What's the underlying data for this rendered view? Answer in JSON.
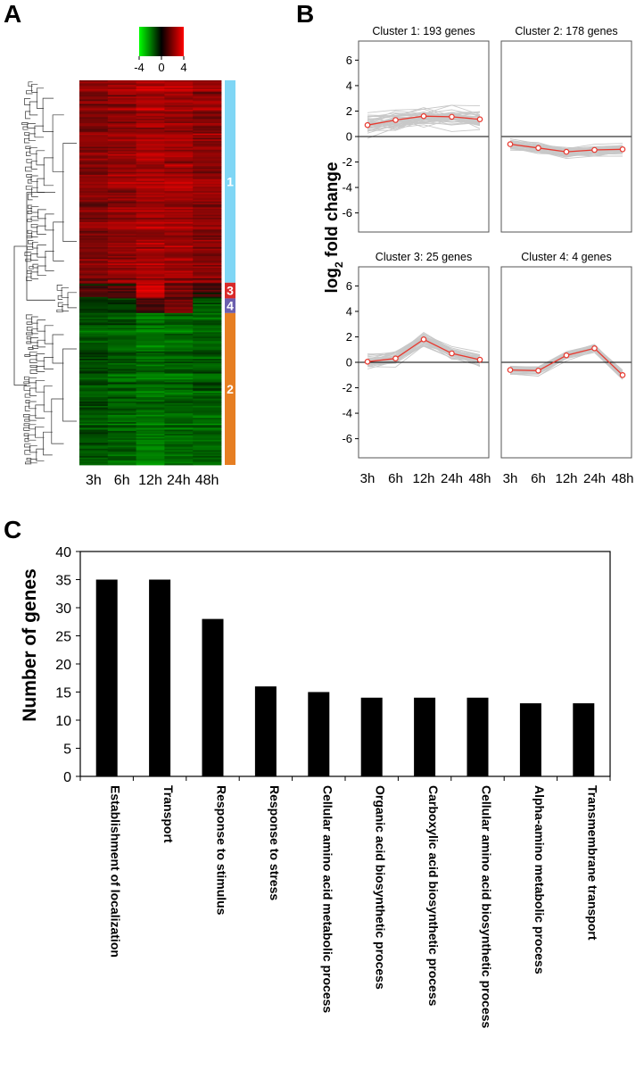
{
  "chart_data": [
    {
      "panel": "A",
      "type": "heatmap",
      "columns": [
        "3h",
        "6h",
        "12h",
        "24h",
        "48h"
      ],
      "color_scale": {
        "ticks": [
          "-4",
          "0",
          "4"
        ],
        "low": "#00ff00",
        "mid": "#000000",
        "high": "#ff0000"
      },
      "clusters": [
        {
          "label": "1",
          "color": "#7fd6f5",
          "fraction": 0.5262,
          "pattern": [
            1.2,
            1.5,
            1.8,
            1.7,
            1.4
          ]
        },
        {
          "label": "3",
          "color": "#d92a2a",
          "fraction": 0.0409,
          "pattern": [
            0.3,
            0.5,
            2.2,
            0.9,
            0.4
          ]
        },
        {
          "label": "4",
          "color": "#6b5fae",
          "fraction": 0.0381,
          "pattern": [
            -0.4,
            -0.5,
            0.4,
            1.0,
            -0.8
          ]
        },
        {
          "label": "2",
          "color": "#e67e22",
          "fraction": 0.3948,
          "pattern": [
            -0.8,
            -1.0,
            -1.3,
            -1.1,
            -1.0
          ]
        }
      ]
    },
    {
      "panel": "B",
      "type": "line",
      "ylabel_main": "log",
      "ylabel_sub": "2",
      "ylabel_rest": " fold change",
      "ylim": [
        -7.5,
        7.5
      ],
      "yticks": [
        6,
        4,
        2,
        0,
        -2,
        -4,
        -6
      ],
      "x": [
        "3h",
        "6h",
        "12h",
        "24h",
        "48h"
      ],
      "panels": [
        {
          "title": "Cluster 1: 193 genes",
          "mean": [
            0.9,
            1.3,
            1.6,
            1.55,
            1.35
          ],
          "spread": 1.4
        },
        {
          "title": "Cluster 2: 178 genes",
          "mean": [
            -0.6,
            -0.9,
            -1.2,
            -1.05,
            -1.0
          ],
          "spread": 0.6
        },
        {
          "title": "Cluster 3: 25 genes",
          "mean": [
            0.05,
            0.3,
            1.8,
            0.7,
            0.2
          ],
          "spread": 0.8
        },
        {
          "title": "Cluster 4: 4 genes",
          "mean": [
            -0.6,
            -0.65,
            0.55,
            1.1,
            -1.0
          ],
          "spread": 0.5
        }
      ]
    },
    {
      "panel": "C",
      "type": "bar",
      "ylabel": "Number of genes",
      "ylim": [
        0,
        40
      ],
      "yticks": [
        0,
        5,
        10,
        15,
        20,
        25,
        30,
        35,
        40
      ],
      "categories": [
        "Establishment of localization",
        "Transport",
        "Response to stimulus",
        "Response to stress",
        "Cellular amino acid metabolic process",
        "Organic acid biosynthetic process",
        "Carboxylic acid biosynthetic process",
        "Cellular amino acid biosynthetic process",
        "Alpha-amino metabolic process",
        "Transmembrane transport"
      ],
      "values": [
        35,
        35,
        28,
        16,
        15,
        14,
        14,
        14,
        13,
        13
      ]
    }
  ],
  "panel_labels": {
    "a": "A",
    "b": "B",
    "c": "C"
  },
  "colors": {
    "line_mean": "#e8392f",
    "line_gene": "#c8c8c8",
    "bar": "#000000"
  }
}
